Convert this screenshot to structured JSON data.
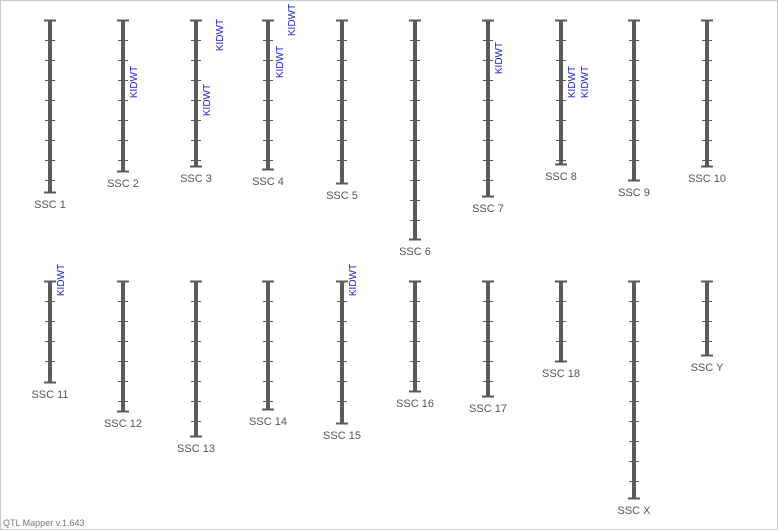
{
  "chromosomes": [
    {
      "label": "SSC 1"
    },
    {
      "label": "SSC 2",
      "qtls": [
        "KIDWT"
      ]
    },
    {
      "label": "SSC 3",
      "qtls": [
        "KIDWT",
        "KIDWT"
      ]
    },
    {
      "label": "SSC 4",
      "qtls": [
        "KIDWT",
        "KIDWT"
      ]
    },
    {
      "label": "SSC 5"
    },
    {
      "label": "SSC 6"
    },
    {
      "label": "SSC 7",
      "qtls": [
        "KIDWT"
      ]
    },
    {
      "label": "SSC 8",
      "qtls": [
        "KIDWT",
        "KIDWT"
      ]
    },
    {
      "label": "SSC 9"
    },
    {
      "label": "SSC 10"
    },
    {
      "label": "SSC 11",
      "qtls": [
        "KIDWT"
      ]
    },
    {
      "label": "SSC 12"
    },
    {
      "label": "SSC 13"
    },
    {
      "label": "SSC 14"
    },
    {
      "label": "SSC 15",
      "qtls": [
        "KIDWT"
      ]
    },
    {
      "label": "SSC 16"
    },
    {
      "label": "SSC 17"
    },
    {
      "label": "SSC 18"
    },
    {
      "label": "SSC X"
    },
    {
      "label": "SSC Y"
    }
  ],
  "footer": "QTL Mapper v.1.643"
}
